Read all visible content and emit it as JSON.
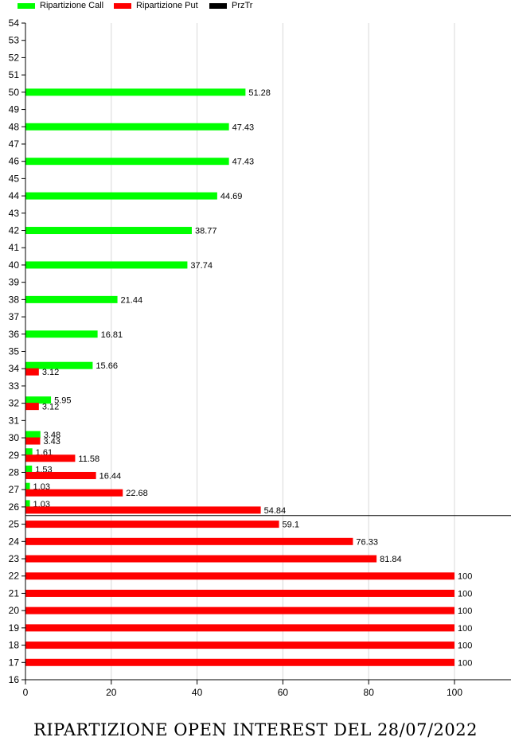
{
  "chart_data": {
    "type": "bar",
    "orientation": "horizontal",
    "title": "RIPARTIZIONE OPEN INTEREST DEL 28/07/2022",
    "xlabel": "",
    "ylabel": "",
    "xlim": [
      0,
      112
    ],
    "ylim": [
      16,
      54
    ],
    "x_ticks": [
      0,
      20,
      40,
      60,
      80,
      100
    ],
    "y_ticks": [
      16,
      17,
      18,
      19,
      20,
      21,
      22,
      23,
      24,
      25,
      26,
      27,
      28,
      29,
      30,
      31,
      32,
      33,
      34,
      35,
      36,
      37,
      38,
      39,
      40,
      41,
      42,
      43,
      44,
      45,
      46,
      47,
      48,
      49,
      50,
      51,
      52,
      53,
      54
    ],
    "grid": "vertical",
    "legend": "top-left",
    "price_line": 25.5,
    "series": [
      {
        "name": "Ripartizione Call",
        "color": "#00ff00",
        "points": [
          {
            "strike": 50,
            "value": 51.28,
            "label": "51.28"
          },
          {
            "strike": 48,
            "value": 47.43,
            "label": "47.43"
          },
          {
            "strike": 46,
            "value": 47.43,
            "label": "47.43"
          },
          {
            "strike": 44,
            "value": 44.69,
            "label": "44.69"
          },
          {
            "strike": 42,
            "value": 38.77,
            "label": "38.77"
          },
          {
            "strike": 40,
            "value": 37.74,
            "label": "37.74"
          },
          {
            "strike": 38,
            "value": 21.44,
            "label": "21.44"
          },
          {
            "strike": 36,
            "value": 16.81,
            "label": "16.81"
          },
          {
            "strike": 34,
            "value": 15.66,
            "label": "15.66"
          },
          {
            "strike": 32,
            "value": 5.95,
            "label": "5.95"
          },
          {
            "strike": 30,
            "value": 3.48,
            "label": "3.48"
          },
          {
            "strike": 29,
            "value": 1.61,
            "label": "1.61"
          },
          {
            "strike": 28,
            "value": 1.53,
            "label": "1.53"
          },
          {
            "strike": 27,
            "value": 1.03,
            "label": "1.03"
          },
          {
            "strike": 26,
            "value": 1.03,
            "label": "1.03"
          }
        ]
      },
      {
        "name": "Ripartizione Put",
        "color": "#ff0000",
        "points": [
          {
            "strike": 34,
            "value": 3.12,
            "label": "3.12"
          },
          {
            "strike": 32,
            "value": 3.12,
            "label": "3.12"
          },
          {
            "strike": 30,
            "value": 3.43,
            "label": "3.43"
          },
          {
            "strike": 29,
            "value": 11.58,
            "label": "11.58"
          },
          {
            "strike": 28,
            "value": 16.44,
            "label": "16.44"
          },
          {
            "strike": 27,
            "value": 22.68,
            "label": "22.68"
          },
          {
            "strike": 26,
            "value": 54.84,
            "label": "54.84"
          },
          {
            "strike": 25,
            "value": 59.1,
            "label": "59.1"
          },
          {
            "strike": 24,
            "value": 76.33,
            "label": "76.33"
          },
          {
            "strike": 23,
            "value": 81.84,
            "label": "81.84"
          },
          {
            "strike": 22,
            "value": 100,
            "label": "100"
          },
          {
            "strike": 21,
            "value": 100,
            "label": "100"
          },
          {
            "strike": 20,
            "value": 100,
            "label": "100"
          },
          {
            "strike": 19,
            "value": 100,
            "label": "100"
          },
          {
            "strike": 18,
            "value": 100,
            "label": "100"
          },
          {
            "strike": 17,
            "value": 100,
            "label": "100"
          }
        ]
      },
      {
        "name": "PrzTr",
        "color": "#000000",
        "points": []
      }
    ]
  }
}
